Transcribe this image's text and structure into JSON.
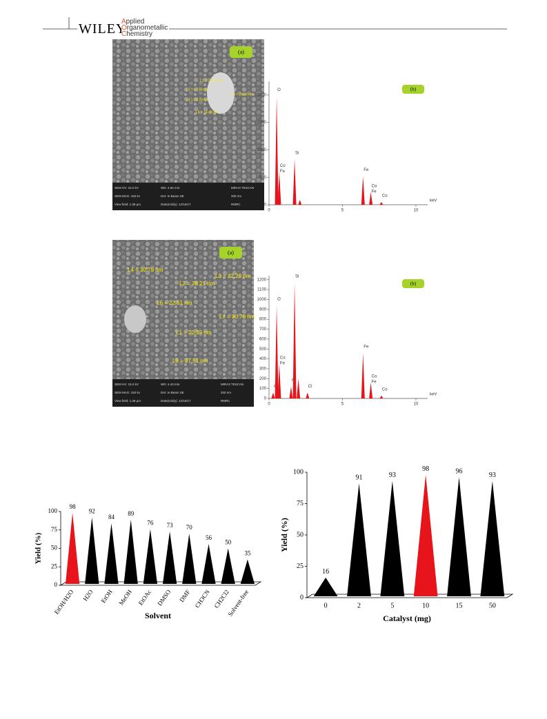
{
  "header": {
    "brand": "WILEY",
    "journal": [
      "Applied",
      "Organometallic",
      "Chemistry"
    ]
  },
  "sem_images": [
    {
      "panel": "(a)",
      "measurements": [
        "L2 = 21.27 nm",
        "L1 = 17.84 nm",
        "L3 = 29.96 nm",
        "L4 = 20.78 nm",
        "L5 = 14.40 nm"
      ],
      "footer": [
        "SEM HV: 15.0 kV",
        "WD: 4.50 mm",
        "MIRA3 TESCAN",
        "SEM MAG: 150 kx",
        "Det: In-Beam SE",
        "200 nm",
        "View field: 1.38 μm",
        "Date(m/d/y): 12/16/17",
        "RMRC"
      ]
    },
    {
      "panel": "(a)",
      "measurements": [
        "L4 = 30.79 nm",
        "L2 = 28.21 nm",
        "L3 = 22.29 nm",
        "L6 = 22.51 nm",
        "L7 = 30.70 nm",
        "L1 = 20.39 nm",
        "L5 = 27.51 nm"
      ],
      "footer": [
        "SEM HV: 15.0 kV",
        "WD: 4.43 mm",
        "MIRA3 TESCAN",
        "SEM MAG: 150 kx",
        "Det: In-Beam SE",
        "200 nm",
        "View field: 1.38 μm",
        "Date(m/d/y): 12/16/17",
        "RMRC"
      ]
    }
  ],
  "chart_data": [
    {
      "type": "spectrum",
      "panel": "(b)",
      "x_label": "keV",
      "color": "#e8141b",
      "xlim": [
        0,
        10.8
      ],
      "xticks": [
        0,
        5,
        10
      ],
      "ylim": [
        0,
        2250
      ],
      "yticks": [
        0,
        500,
        1000,
        1500,
        2000
      ],
      "peaks": [
        {
          "x": 0.52,
          "value": 1980,
          "labels": [
            "O"
          ]
        },
        {
          "x": 0.7,
          "value": 600,
          "labels": [
            "Co",
            "Fe"
          ]
        },
        {
          "x": 1.74,
          "value": 830,
          "labels": [
            "Si"
          ]
        },
        {
          "x": 2.1,
          "value": 90,
          "labels": []
        },
        {
          "x": 6.4,
          "value": 520,
          "labels": [
            "Fe"
          ]
        },
        {
          "x": 6.93,
          "value": 230,
          "labels": [
            "Co",
            "Fe"
          ]
        },
        {
          "x": 7.65,
          "value": 50,
          "labels": [
            "Co"
          ]
        }
      ]
    },
    {
      "type": "spectrum",
      "panel": "(b)",
      "x_label": "keV",
      "color": "#e8141b",
      "xlim": [
        0,
        10.8
      ],
      "xticks": [
        0,
        5,
        10
      ],
      "ylim": [
        0,
        1240
      ],
      "yticks": [
        0,
        100,
        200,
        300,
        400,
        500,
        600,
        700,
        800,
        900,
        1000,
        1100,
        1200
      ],
      "peaks": [
        {
          "x": 0.28,
          "value": 60,
          "labels": [
            "C"
          ]
        },
        {
          "x": 0.52,
          "value": 940,
          "labels": [
            "O"
          ]
        },
        {
          "x": 0.7,
          "value": 350,
          "labels": [
            "Co",
            "Fe"
          ]
        },
        {
          "x": 1.5,
          "value": 120,
          "labels": [
            "N"
          ]
        },
        {
          "x": 1.74,
          "value": 1170,
          "labels": [
            "Si"
          ]
        },
        {
          "x": 2.0,
          "value": 200,
          "labels": []
        },
        {
          "x": 2.62,
          "value": 60,
          "labels": [
            "Cl"
          ]
        },
        {
          "x": 6.4,
          "value": 460,
          "labels": [
            "Fe"
          ]
        },
        {
          "x": 6.93,
          "value": 160,
          "labels": [
            "Co",
            "Fe"
          ]
        },
        {
          "x": 7.65,
          "value": 30,
          "labels": [
            "Co"
          ]
        }
      ]
    },
    {
      "type": "bar",
      "y_label": "Yield (%)",
      "x_label": "Solvent",
      "ylim": [
        0,
        100
      ],
      "yticks": [
        0,
        25,
        50,
        75,
        100
      ],
      "categories": [
        "EtOH/H2O",
        "H2O",
        "EtOH",
        "MeOH",
        "EtOAc",
        "DMSO",
        "DMF",
        "CH3CN",
        "CH2Cl2",
        "Solvent-free"
      ],
      "values": [
        98,
        92,
        84,
        89,
        76,
        73,
        70,
        56,
        50,
        35
      ],
      "colors": [
        "#e8141b",
        "#000000",
        "#000000",
        "#000000",
        "#000000",
        "#000000",
        "#000000",
        "#000000",
        "#000000",
        "#000000"
      ]
    },
    {
      "type": "bar",
      "y_label": "Yield (%)",
      "x_label": "Catalyst (mg)",
      "ylim": [
        0,
        100
      ],
      "yticks": [
        0,
        25,
        50,
        75,
        100
      ],
      "categories": [
        "0",
        "2",
        "5",
        "10",
        "15",
        "50"
      ],
      "values": [
        16,
        91,
        93,
        98,
        96,
        93
      ],
      "colors": [
        "#000000",
        "#000000",
        "#000000",
        "#e8141b",
        "#000000",
        "#000000"
      ]
    }
  ]
}
